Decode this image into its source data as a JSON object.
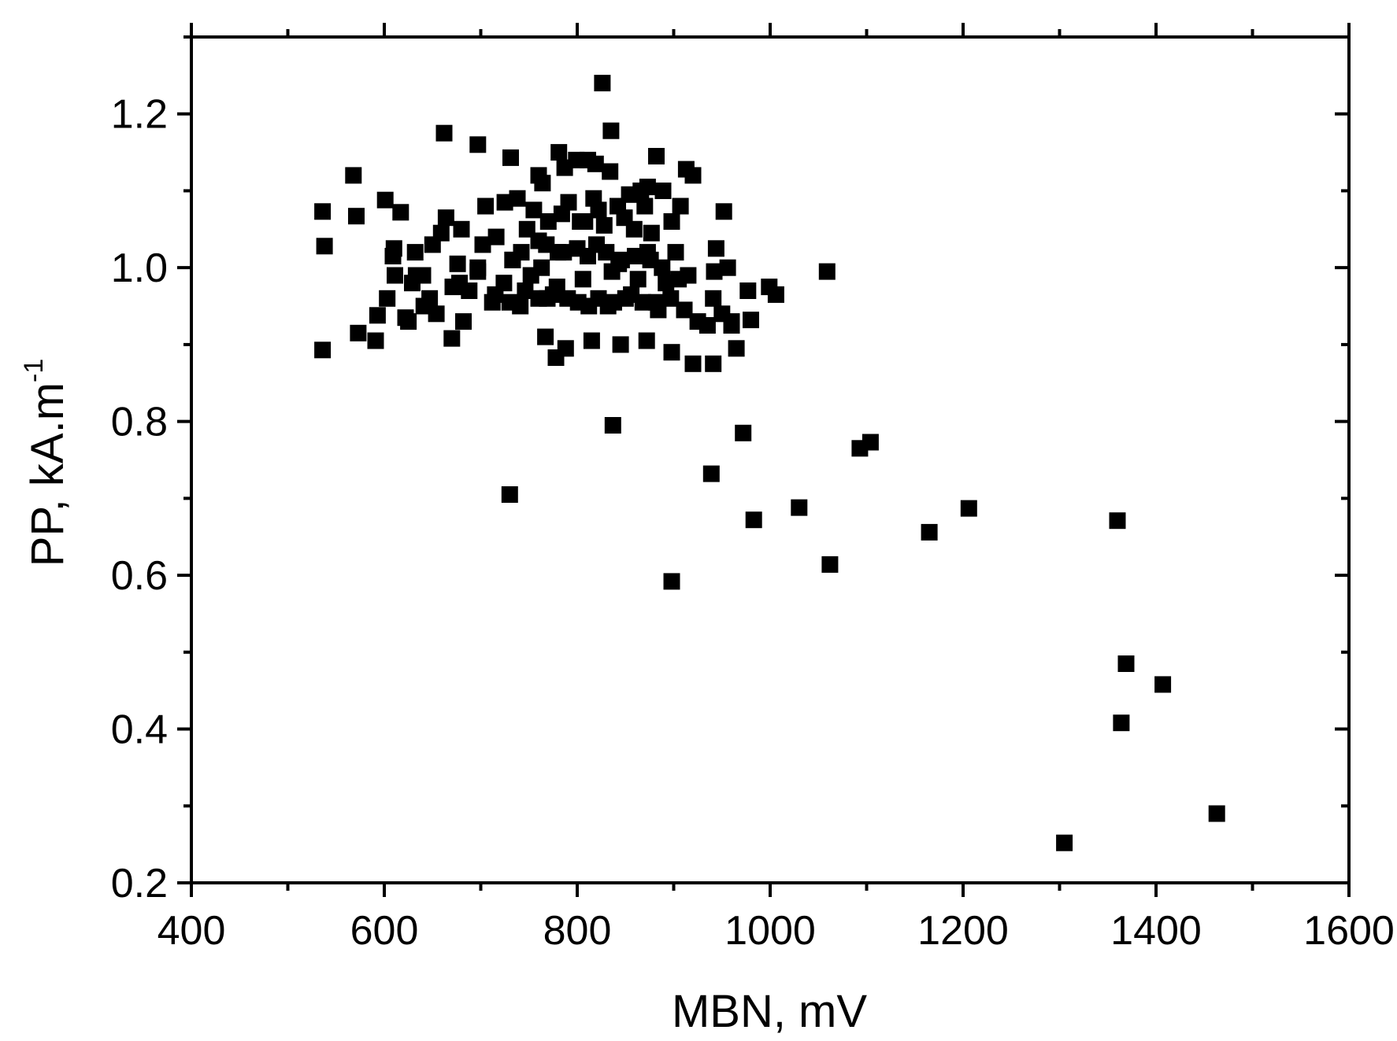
{
  "chart_data": {
    "type": "scatter",
    "title": "",
    "xlabel": "MBN, mV",
    "ylabel": "PP, kA.m",
    "ylabel_superscript": "-1",
    "xlim": [
      400,
      1600
    ],
    "ylim": [
      0.2,
      1.3
    ],
    "x_ticks": [
      400,
      600,
      800,
      1000,
      1200,
      1400,
      1600
    ],
    "x_tick_labels": [
      "400",
      "600",
      "800",
      "1000",
      "1200",
      "1400",
      "1600"
    ],
    "y_ticks": [
      0.2,
      0.4,
      0.6,
      0.8,
      1.0,
      1.2
    ],
    "y_tick_labels": [
      "0.2",
      "0.4",
      "0.6",
      "0.8",
      "1.0",
      "1.2"
    ],
    "grid": false,
    "marker": "square",
    "marker_color": "#000000",
    "series": [
      {
        "x": [
          826,
          662,
          697,
          568,
          731,
          781,
          835,
          811,
          882,
          913,
          920,
          536,
          571,
          601,
          617,
          664,
          705,
          725,
          738,
          755,
          791,
          817,
          842,
          866,
          889,
          907,
          952,
          538,
          610,
          632,
          659,
          680,
          716,
          748,
          770,
          803,
          828,
          859,
          877,
          898,
          944,
          609,
          633,
          650,
          676,
          702,
          733,
          763,
          786,
          820,
          846,
          873,
          902,
          956,
          1059,
          611,
          629,
          647,
          671,
          697,
          724,
          752,
          779,
          806,
          836,
          863,
          892,
          915,
          942,
          977,
          999,
          1006,
          536,
          573,
          593,
          625,
          654,
          682,
          712,
          741,
          769,
          801,
          832,
          856,
          882,
          911,
          941,
          960,
          980,
          591,
          670,
          767,
          788,
          815,
          845,
          872,
          898,
          920,
          941,
          965,
          778,
          603,
          622,
          641,
          715,
          730,
          746,
          760,
          775,
          790,
          812,
          822,
          838,
          850,
          868,
          884,
          897,
          925,
          935,
          950,
          960,
          640,
          678,
          688,
          697,
          733,
          742,
          760,
          768,
          780,
          800,
          811,
          830,
          843,
          860,
          876,
          888,
          905,
          784,
          808,
          822,
          849,
          870,
          764,
          760,
          787,
          799,
          819,
          834,
          854,
          873,
          837,
          972,
          730,
          939,
          1093,
          1104,
          983,
          1030,
          1206,
          1165,
          898,
          1062,
          1360,
          1369,
          1407,
          1364,
          1463,
          1305
        ],
        "y": [
          1.24,
          1.175,
          1.16,
          1.12,
          1.143,
          1.15,
          1.178,
          1.14,
          1.145,
          1.128,
          1.12,
          1.073,
          1.067,
          1.088,
          1.072,
          1.065,
          1.08,
          1.085,
          1.09,
          1.075,
          1.085,
          1.09,
          1.08,
          1.1,
          1.1,
          1.08,
          1.073,
          1.028,
          1.025,
          1.02,
          1.045,
          1.05,
          1.04,
          1.05,
          1.06,
          1.06,
          1.055,
          1.05,
          1.045,
          1.06,
          1.025,
          1.015,
          0.99,
          1.03,
          1.005,
          1.03,
          1.01,
          1.0,
          1.02,
          1.03,
          1.01,
          1.02,
          1.02,
          1.0,
          0.995,
          0.99,
          0.98,
          0.96,
          0.975,
          0.995,
          0.98,
          0.99,
          0.975,
          0.985,
          0.995,
          0.985,
          0.98,
          0.99,
          0.995,
          0.97,
          0.975,
          0.965,
          0.893,
          0.915,
          0.938,
          0.93,
          0.94,
          0.93,
          0.955,
          0.95,
          0.96,
          0.955,
          0.95,
          0.965,
          0.955,
          0.945,
          0.96,
          0.93,
          0.932,
          0.905,
          0.908,
          0.91,
          0.895,
          0.905,
          0.9,
          0.905,
          0.89,
          0.875,
          0.875,
          0.895,
          0.883,
          0.96,
          0.935,
          0.95,
          0.965,
          0.955,
          0.97,
          0.96,
          0.965,
          0.96,
          0.95,
          0.96,
          0.955,
          0.96,
          0.955,
          0.945,
          0.96,
          0.93,
          0.925,
          0.94,
          0.925,
          0.99,
          0.98,
          0.97,
          1.0,
          1.01,
          1.02,
          1.035,
          1.03,
          1.02,
          1.025,
          1.015,
          1.02,
          1.005,
          1.015,
          1.01,
          1.0,
          0.985,
          1.07,
          1.06,
          1.075,
          1.065,
          1.08,
          1.11,
          1.12,
          1.13,
          1.14,
          1.135,
          1.125,
          1.095,
          1.105,
          0.795,
          0.785,
          0.705,
          0.732,
          0.765,
          0.773,
          0.672,
          0.688,
          0.687,
          0.656,
          0.592,
          0.614,
          0.671,
          0.485,
          0.458,
          0.408,
          0.29,
          0.252
        ]
      }
    ]
  }
}
